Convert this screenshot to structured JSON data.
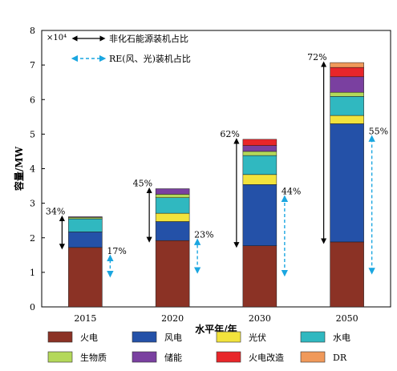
{
  "chart_data": {
    "type": "bar",
    "stacked": true,
    "categories": [
      "2015",
      "2020",
      "2030",
      "2050"
    ],
    "xlabel": "水平年/年",
    "ylabel": "容量/MW",
    "y_multiplier": "×10⁴",
    "ylim": [
      0,
      8
    ],
    "y_ticks": [
      0,
      1,
      2,
      3,
      4,
      5,
      6,
      7,
      8
    ],
    "grid": false,
    "legend_position": "bottom",
    "series": [
      {
        "name": "火电",
        "color": "#8b3225",
        "values": [
          1.72,
          1.92,
          1.77,
          1.88
        ]
      },
      {
        "name": "风电",
        "color": "#2451a8",
        "values": [
          0.45,
          0.55,
          1.77,
          3.42
        ]
      },
      {
        "name": "光伏",
        "color": "#f2e33c",
        "values": [
          0.0,
          0.24,
          0.29,
          0.24
        ]
      },
      {
        "name": "水电",
        "color": "#30b8c0",
        "values": [
          0.38,
          0.45,
          0.55,
          0.55
        ]
      },
      {
        "name": "生物质",
        "color": "#b4d85a",
        "values": [
          0.04,
          0.1,
          0.12,
          0.12
        ]
      },
      {
        "name": "储能",
        "color": "#7a40a0",
        "values": [
          0.02,
          0.16,
          0.17,
          0.45
        ]
      },
      {
        "name": "火电改造",
        "color": "#e8262a",
        "values": [
          0.0,
          0.0,
          0.18,
          0.27
        ]
      },
      {
        "name": "DR",
        "color": "#f0995a",
        "values": [
          0.0,
          0.0,
          0.0,
          0.14
        ]
      }
    ],
    "annotations": {
      "black_legend": "非化石能源装机占比",
      "blue_legend": "RE(风、光)装机占比",
      "non_fossil_share": [
        "34%",
        "45%",
        "62%",
        "72%"
      ],
      "re_share": [
        "17%",
        "23%",
        "44%",
        "55%"
      ]
    }
  }
}
